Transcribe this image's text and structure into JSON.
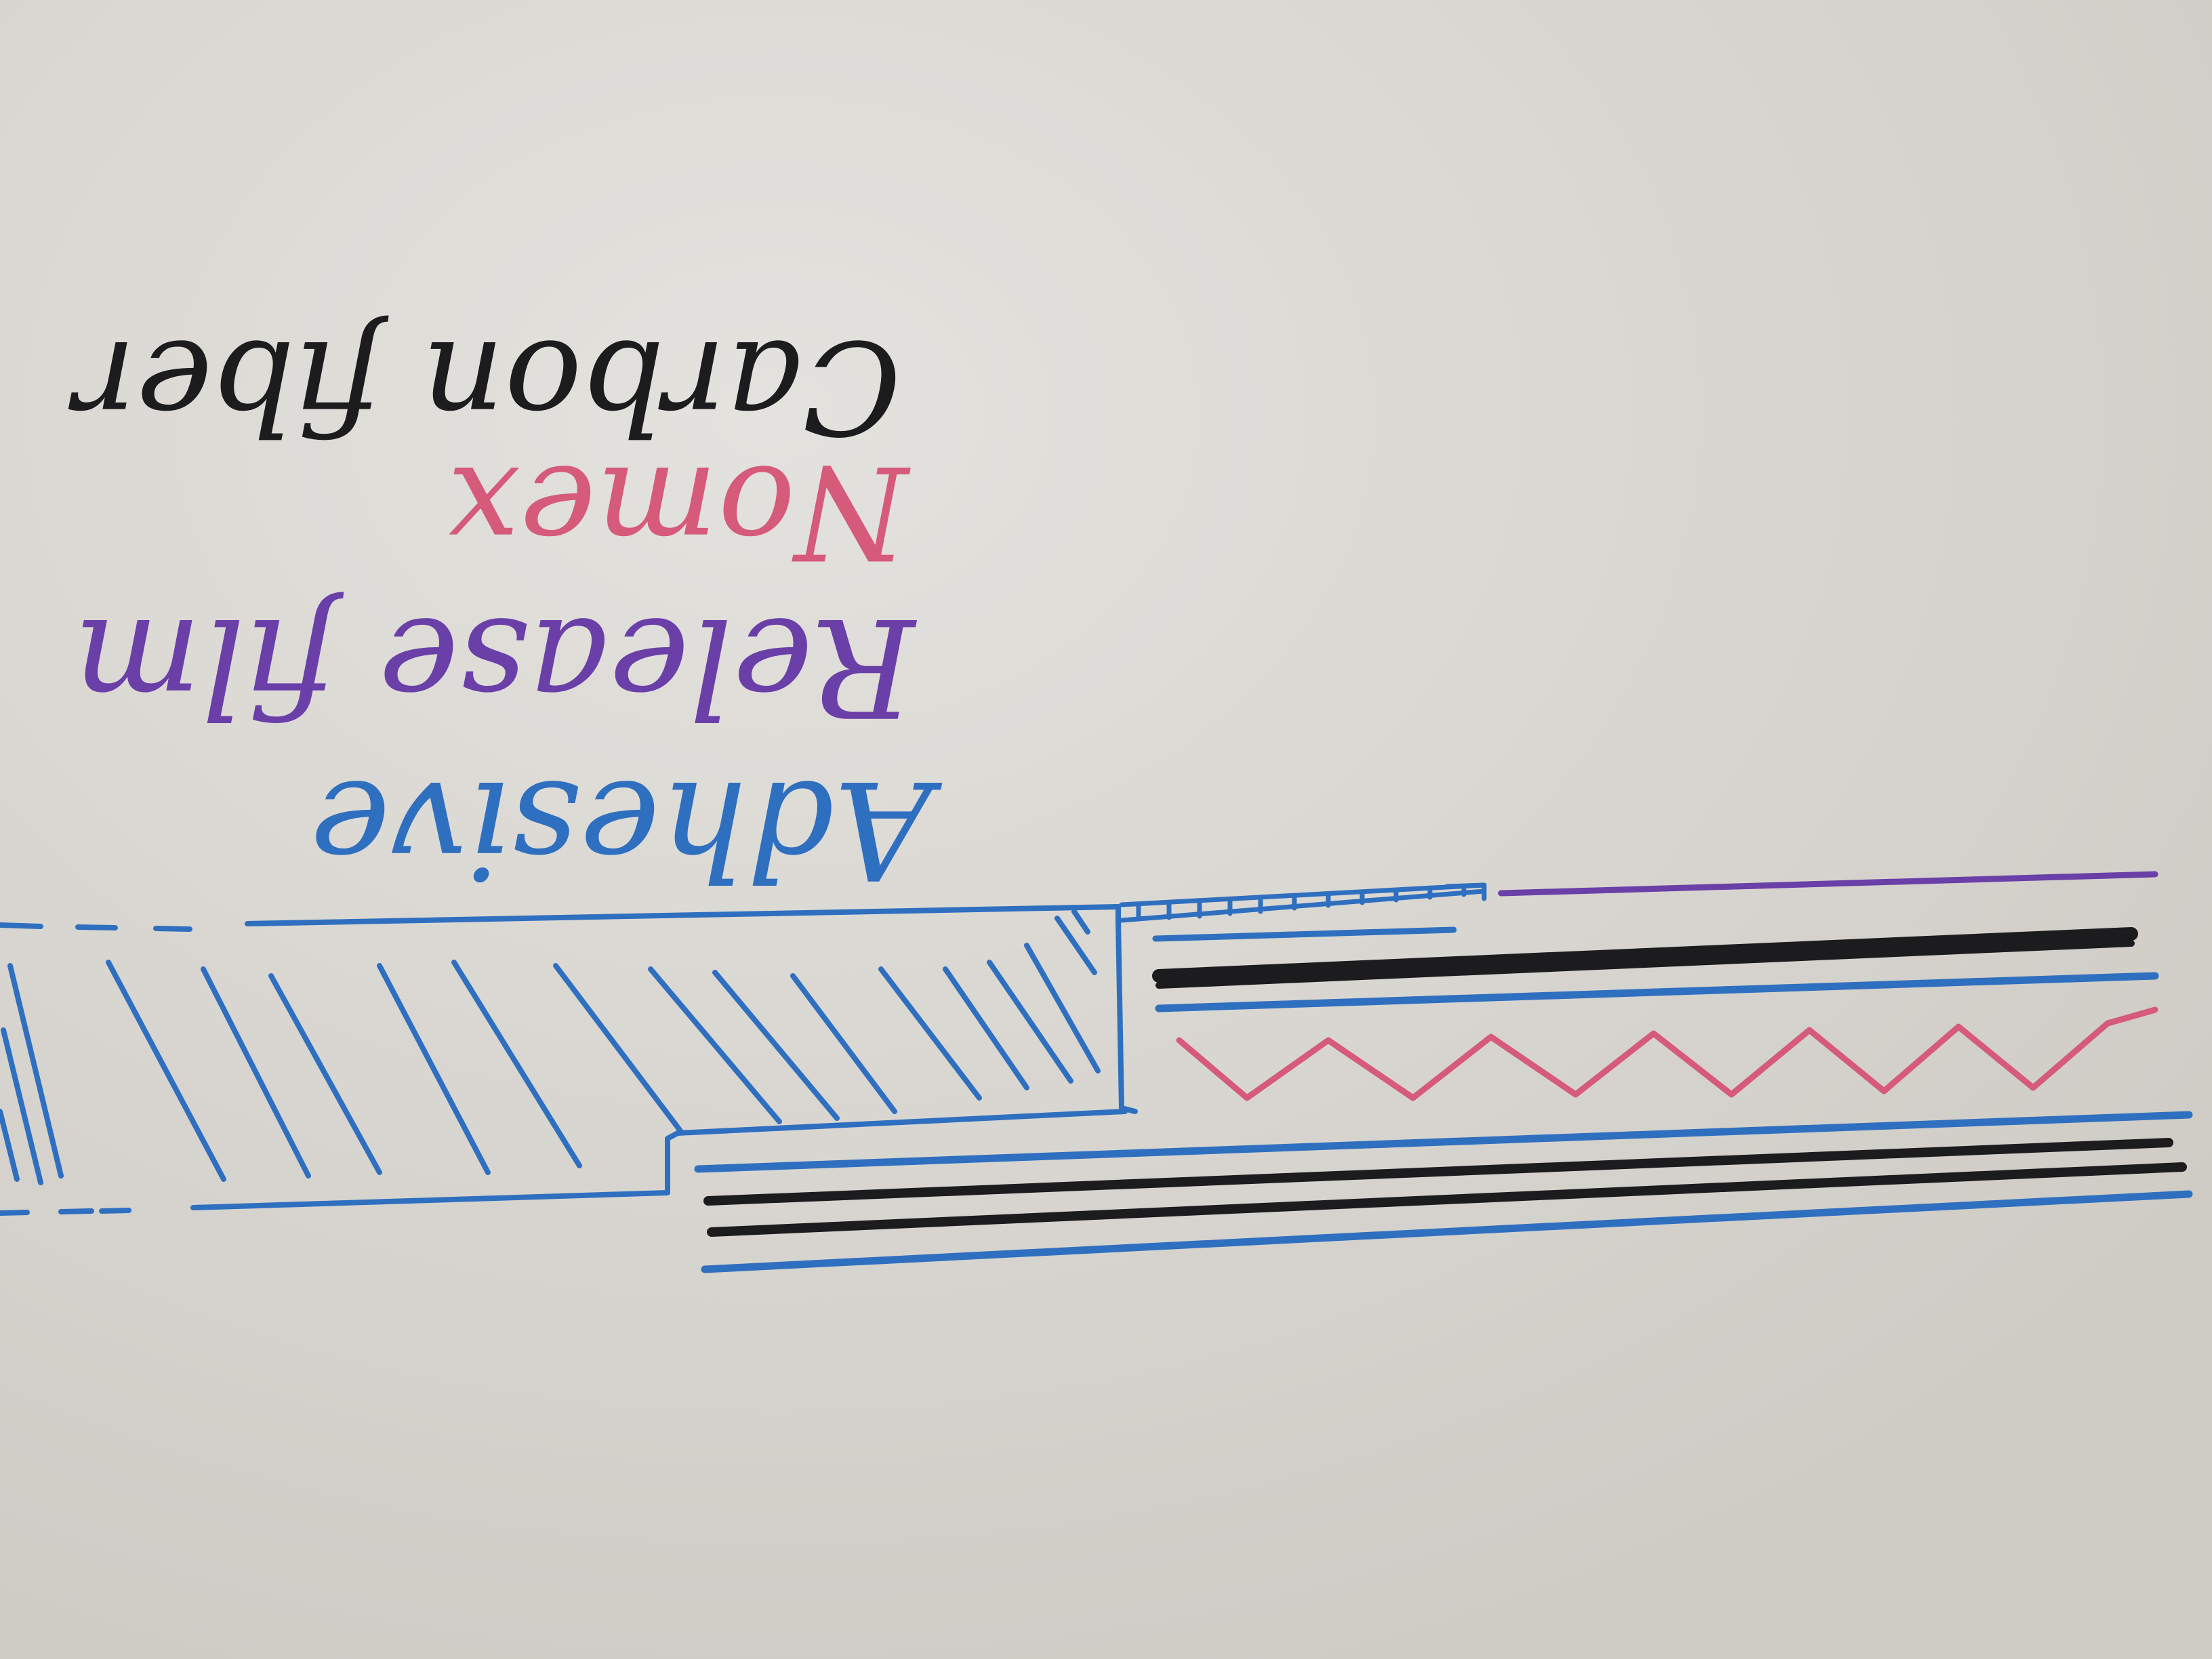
{
  "labels": {
    "carbon_fiber": "Carbon fiber",
    "nomex": "Nomex",
    "release_film": "Release film",
    "adhesive": "Adhesive"
  },
  "colors": {
    "background": "#d6d3ce",
    "carbon_fiber": "#1c1c1e",
    "nomex": "#d65a7a",
    "release_film": "#6a3fa8",
    "adhesive": "#2f6fbf"
  }
}
